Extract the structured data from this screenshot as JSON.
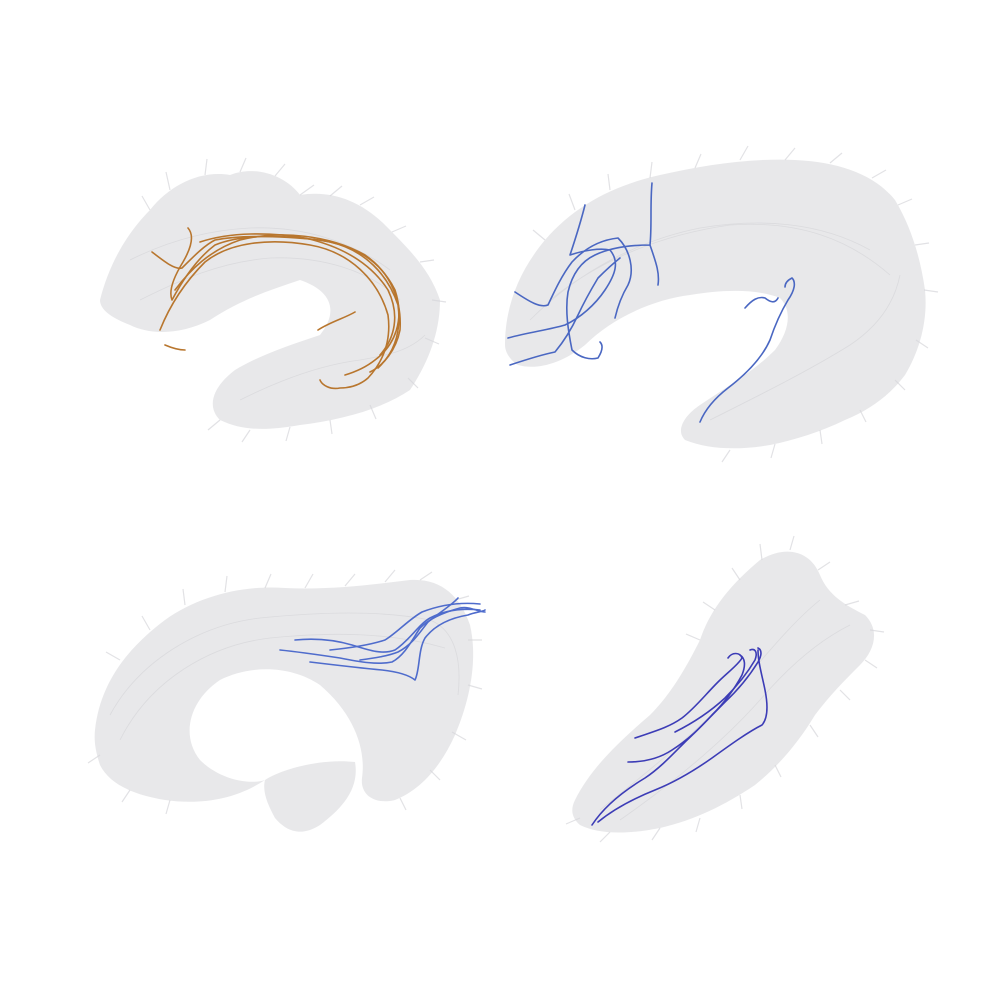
{
  "panels": [
    {
      "id": "top-left",
      "streamline_color": "#b8762e"
    },
    {
      "id": "top-right",
      "streamline_color": "#4a67c2"
    },
    {
      "id": "bottom-left",
      "streamline_color": "#4f6ccc"
    },
    {
      "id": "bottom-right",
      "streamline_color": "#3c3cb6"
    }
  ]
}
